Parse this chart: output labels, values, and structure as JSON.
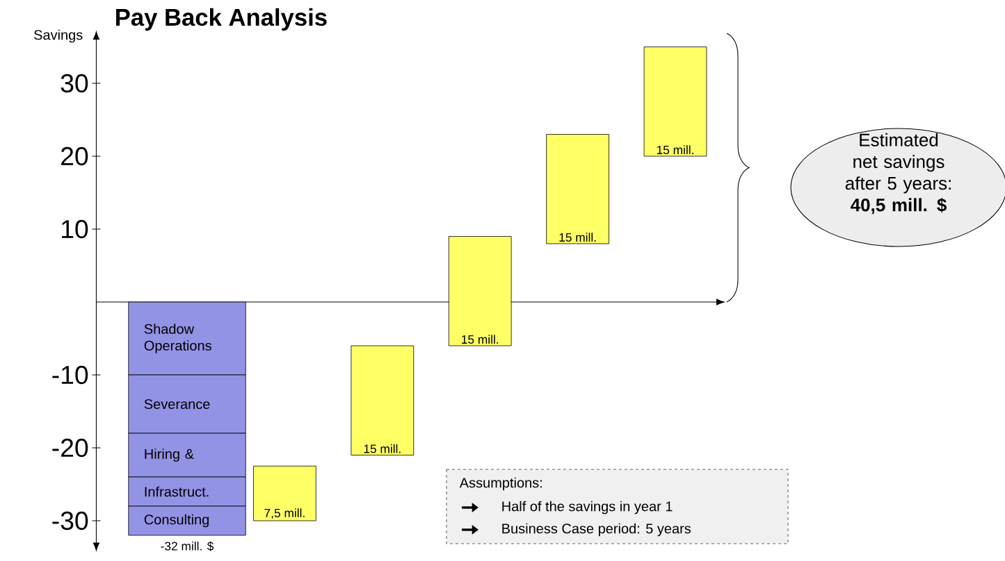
{
  "chart_data": {
    "type": "bar",
    "title": "Pay Back Analysis",
    "ylabel": "Savings",
    "categories": [
      null,
      null,
      null,
      null,
      null,
      null
    ],
    "stacked": true,
    "series": [
      {
        "name": "Shadow Operations",
        "color": "#9393e6",
        "values": [
          -10,
          null,
          null,
          null,
          null,
          null
        ]
      },
      {
        "name": "Severance",
        "color": "#9393e6",
        "values": [
          -8,
          null,
          null,
          null,
          null,
          null
        ]
      },
      {
        "name": "Hiring  &",
        "color": "#9393e6",
        "values": [
          -6,
          null,
          null,
          null,
          null,
          null
        ]
      },
      {
        "name": "Infrastruct.",
        "color": "#9393e6",
        "values": [
          -4,
          null,
          null,
          null,
          null,
          null
        ]
      },
      {
        "name": "Consulting",
        "color": "#9393e6",
        "values": [
          -4,
          null,
          null,
          null,
          null,
          null
        ]
      },
      {
        "color": "#ffff66",
        "values": [
          null,
          7.5,
          15,
          15,
          15,
          15
        ],
        "base": [
          null,
          -30,
          -21,
          -6,
          8,
          20
        ],
        "value_labels": [
          null,
          "7,5 mill.",
          "15 mill.",
          "15 mill.",
          "15 mill.",
          "15 mill."
        ]
      }
    ],
    "totals": [
      "-32 mill. $",
      null,
      null,
      null,
      null,
      null
    ],
    "ylim": [
      -33,
      36
    ],
    "yticks": [
      -30,
      -20,
      -10,
      10,
      20,
      30
    ],
    "annotations": [
      "Estimated net savings after 5 years: **40,5 mill. $**",
      "Assumptions:",
      "Half of the savings in year 1",
      "Business Case period: 5 years"
    ]
  }
}
